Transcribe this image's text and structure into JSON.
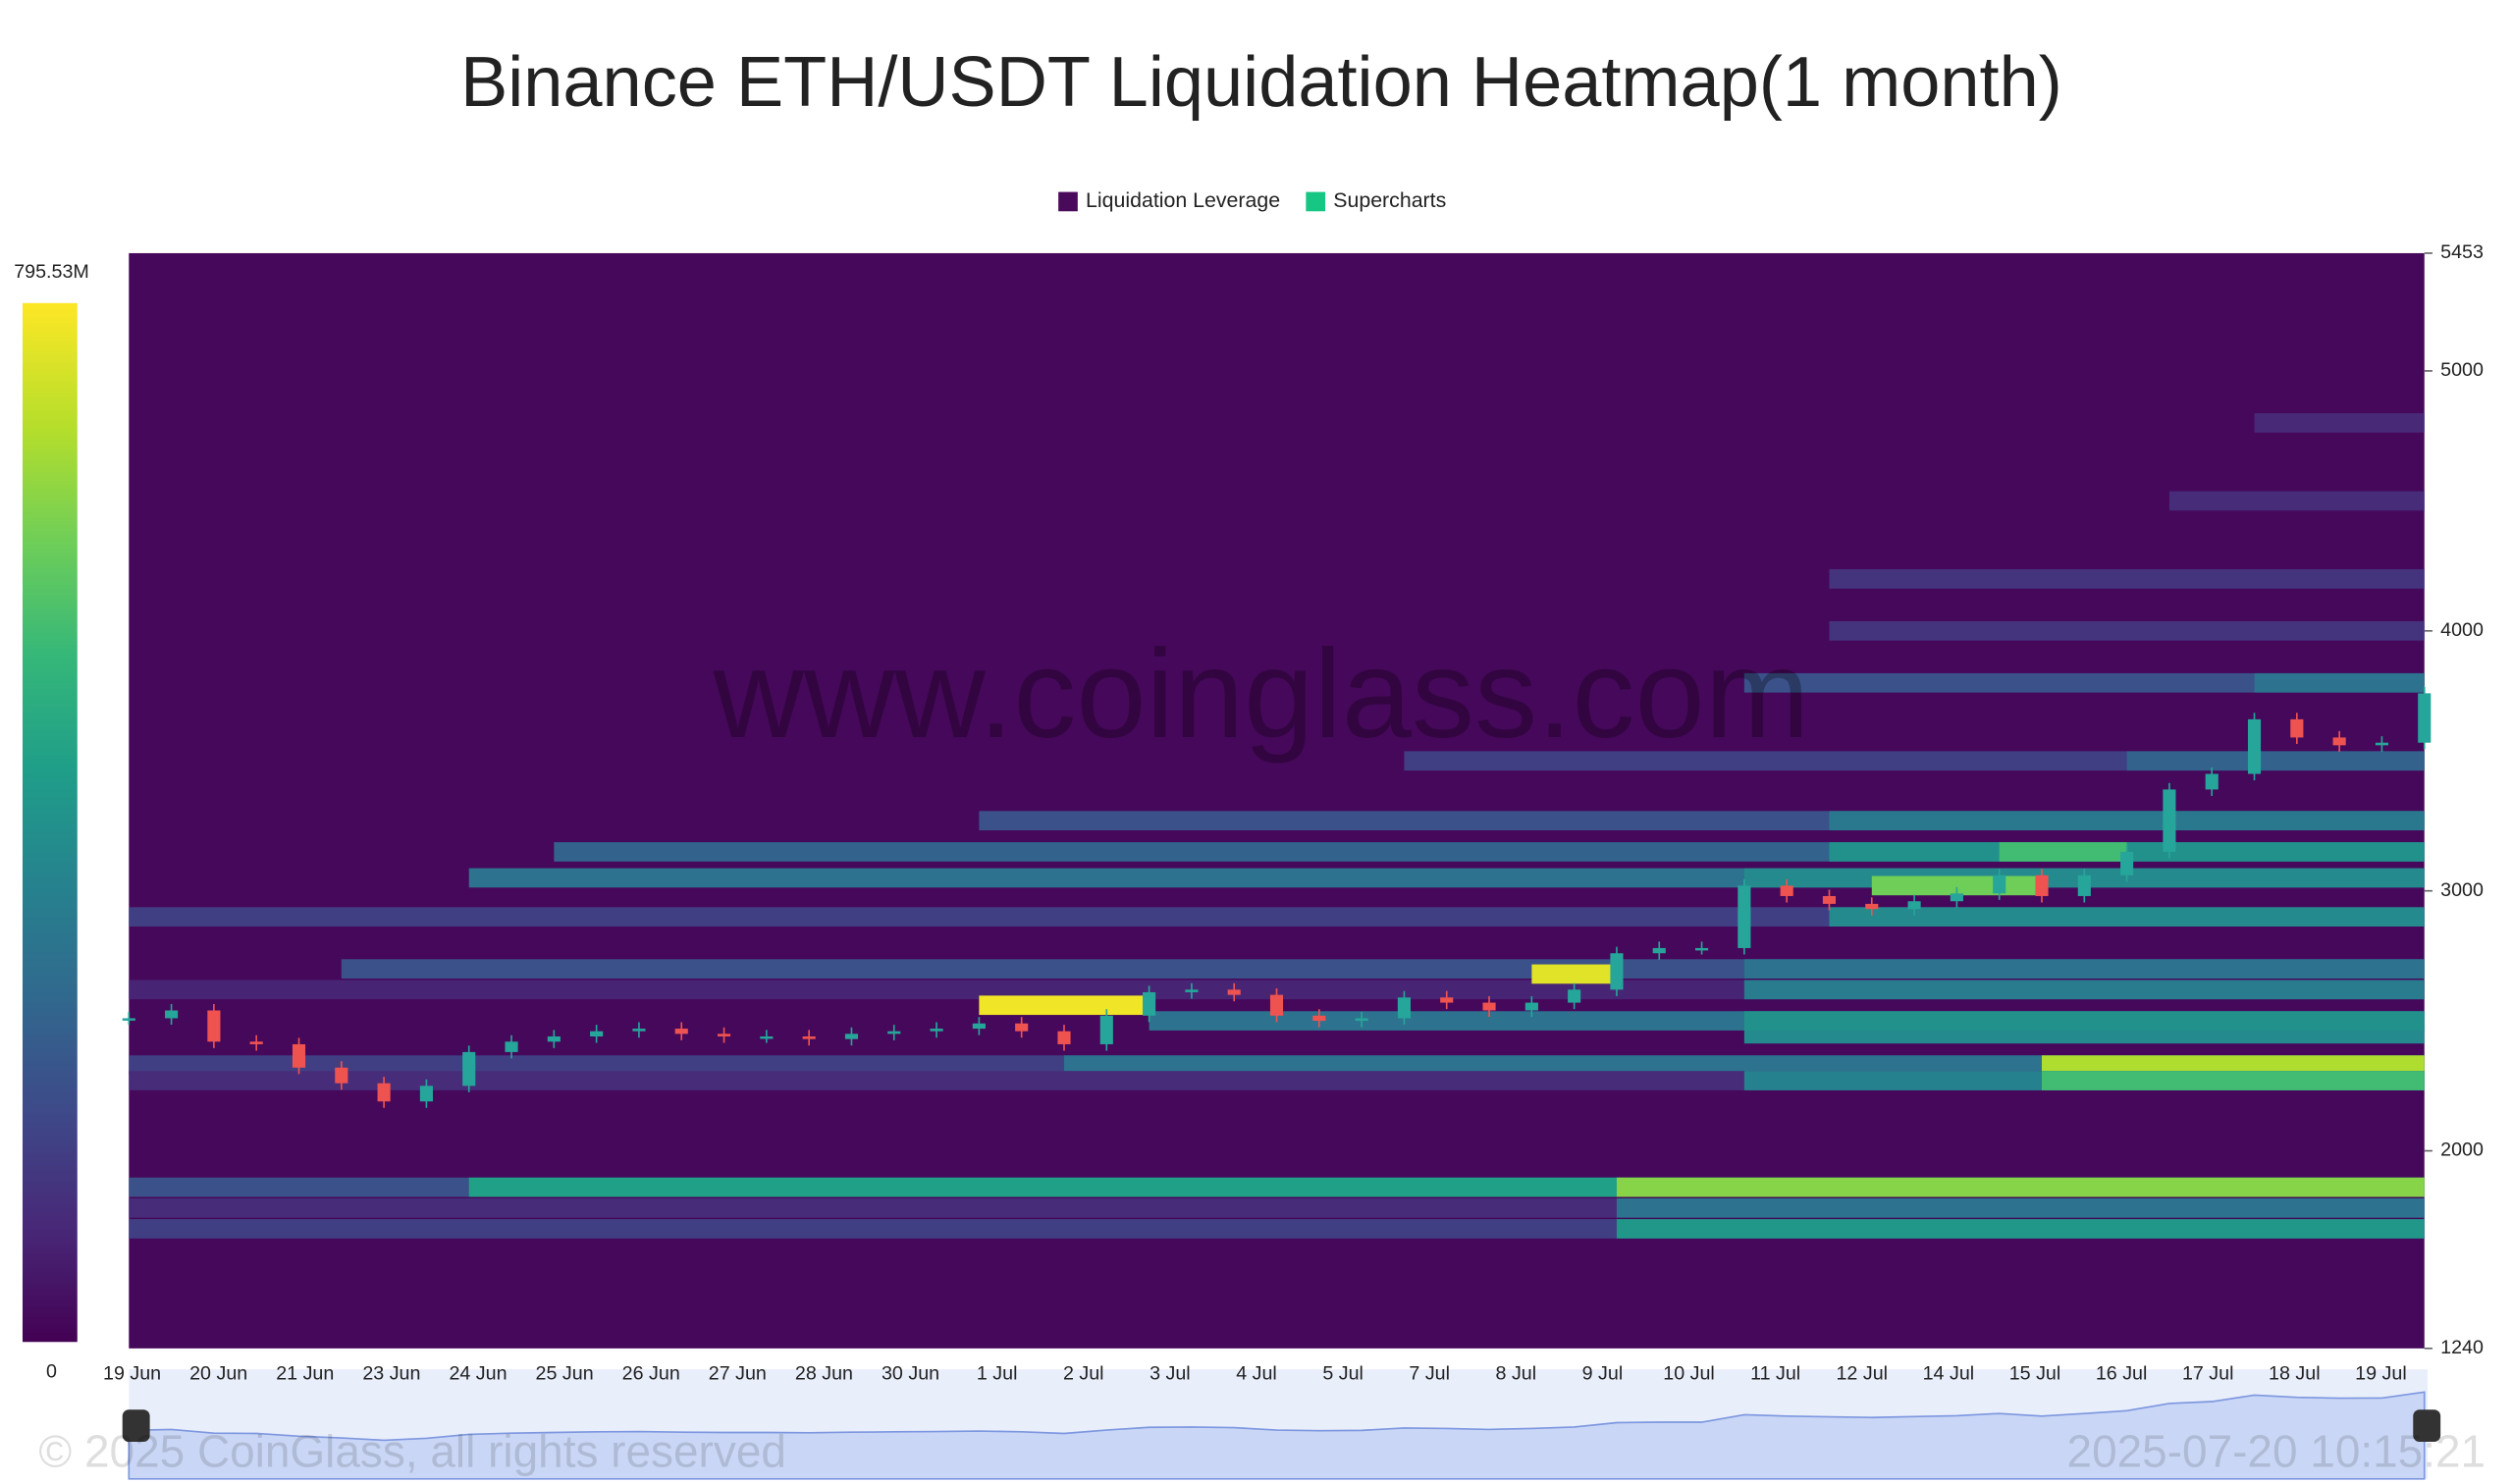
{
  "chart_data": {
    "type": "heatmap",
    "title": "Binance ETH/USDT Liquidation Heatmap(1 month)",
    "legend": [
      {
        "name": "Liquidation Leverage",
        "color": "#4a0a5c"
      },
      {
        "name": "Supercharts",
        "color": "#16c784"
      }
    ],
    "colorbar": {
      "min": 0,
      "max": {
        "value": 795.53,
        "label": "795.53M"
      }
    },
    "categories": [
      "19 Jun",
      "20 Jun",
      "21 Jun",
      "23 Jun",
      "24 Jun",
      "25 Jun",
      "26 Jun",
      "27 Jun",
      "28 Jun",
      "30 Jun",
      "1 Jul",
      "2 Jul",
      "3 Jul",
      "4 Jul",
      "5 Jul",
      "7 Jul",
      "8 Jul",
      "9 Jul",
      "10 Jul",
      "11 Jul",
      "12 Jul",
      "14 Jul",
      "15 Jul",
      "16 Jul",
      "17 Jul",
      "18 Jul",
      "19 Jul"
    ],
    "ylim": [
      1240,
      5453
    ],
    "yticks": [
      5453,
      5000,
      4000,
      3000,
      2000,
      1240
    ],
    "price": [
      2510,
      2540,
      2420,
      2410,
      2320,
      2260,
      2190,
      2250,
      2380,
      2420,
      2440,
      2460,
      2470,
      2450,
      2440,
      2440,
      2430,
      2450,
      2460,
      2470,
      2490,
      2460,
      2410,
      2520,
      2610,
      2620,
      2600,
      2520,
      2500,
      2510,
      2590,
      2570,
      2540,
      2570,
      2620,
      2760,
      2780,
      2780,
      3020,
      2980,
      2950,
      2930,
      2960,
      2990,
      3060,
      2980,
      3060,
      3150,
      3390,
      3450,
      3660,
      3590,
      3560,
      3570,
      3760
    ],
    "up_color": "#26a69a",
    "down_color": "#ef5350",
    "bands": [
      {
        "price": 2330,
        "start": 0,
        "end": 54,
        "value": 150
      },
      {
        "price": 2330,
        "start": 22,
        "end": 54,
        "value": 300
      },
      {
        "price": 2330,
        "start": 45,
        "end": 54,
        "value": 700
      },
      {
        "price": 2270,
        "start": 0,
        "end": 54,
        "value": 100
      },
      {
        "price": 2270,
        "start": 38,
        "end": 54,
        "value": 350
      },
      {
        "price": 2270,
        "start": 45,
        "end": 54,
        "value": 550
      },
      {
        "price": 1860,
        "start": 0,
        "end": 54,
        "value": 200
      },
      {
        "price": 1860,
        "start": 8,
        "end": 54,
        "value": 450
      },
      {
        "price": 1860,
        "start": 35,
        "end": 54,
        "value": 650
      },
      {
        "price": 1700,
        "start": 0,
        "end": 54,
        "value": 150
      },
      {
        "price": 1700,
        "start": 35,
        "end": 54,
        "value": 420
      },
      {
        "price": 1780,
        "start": 0,
        "end": 54,
        "value": 100
      },
      {
        "price": 1780,
        "start": 35,
        "end": 54,
        "value": 300
      },
      {
        "price": 2450,
        "start": 38,
        "end": 54,
        "value": 380
      },
      {
        "price": 2500,
        "start": 24,
        "end": 54,
        "value": 300
      },
      {
        "price": 2500,
        "start": 38,
        "end": 54,
        "value": 400
      },
      {
        "price": 2620,
        "start": 0,
        "end": 54,
        "value": 80
      },
      {
        "price": 2620,
        "start": 38,
        "end": 54,
        "value": 330
      },
      {
        "price": 2700,
        "start": 5,
        "end": 54,
        "value": 200
      },
      {
        "price": 2700,
        "start": 38,
        "end": 54,
        "value": 300
      },
      {
        "price": 2900,
        "start": 0,
        "end": 54,
        "value": 150
      },
      {
        "price": 2900,
        "start": 40,
        "end": 54,
        "value": 380
      },
      {
        "price": 3050,
        "start": 8,
        "end": 54,
        "value": 300
      },
      {
        "price": 3050,
        "start": 38,
        "end": 54,
        "value": 380
      },
      {
        "price": 3150,
        "start": 10,
        "end": 54,
        "value": 250
      },
      {
        "price": 3150,
        "start": 40,
        "end": 54,
        "value": 400
      },
      {
        "price": 3150,
        "start": 44,
        "end": 47,
        "value": 550
      },
      {
        "price": 3270,
        "start": 20,
        "end": 54,
        "value": 200
      },
      {
        "price": 3270,
        "start": 40,
        "end": 54,
        "value": 320
      },
      {
        "price": 3500,
        "start": 30,
        "end": 54,
        "value": 150
      },
      {
        "price": 3500,
        "start": 47,
        "end": 54,
        "value": 250
      },
      {
        "price": 3800,
        "start": 38,
        "end": 54,
        "value": 200
      },
      {
        "price": 3800,
        "start": 50,
        "end": 54,
        "value": 300
      },
      {
        "price": 4000,
        "start": 40,
        "end": 54,
        "value": 120
      },
      {
        "price": 4200,
        "start": 40,
        "end": 54,
        "value": 120
      },
      {
        "price": 4500,
        "start": 48,
        "end": 54,
        "value": 100
      },
      {
        "price": 4800,
        "start": 50,
        "end": 54,
        "value": 90
      },
      {
        "price": 2560,
        "start": 20,
        "end": 24,
        "value": 780
      },
      {
        "price": 2680,
        "start": 33,
        "end": 35,
        "value": 760
      },
      {
        "price": 3020,
        "start": 41,
        "end": 45,
        "value": 620
      }
    ],
    "watermark": "www.coinglass.com",
    "copyright": "© 2025 CoinGlass, all rights reserved",
    "timestamp": "2025-07-20 10:15:21"
  }
}
